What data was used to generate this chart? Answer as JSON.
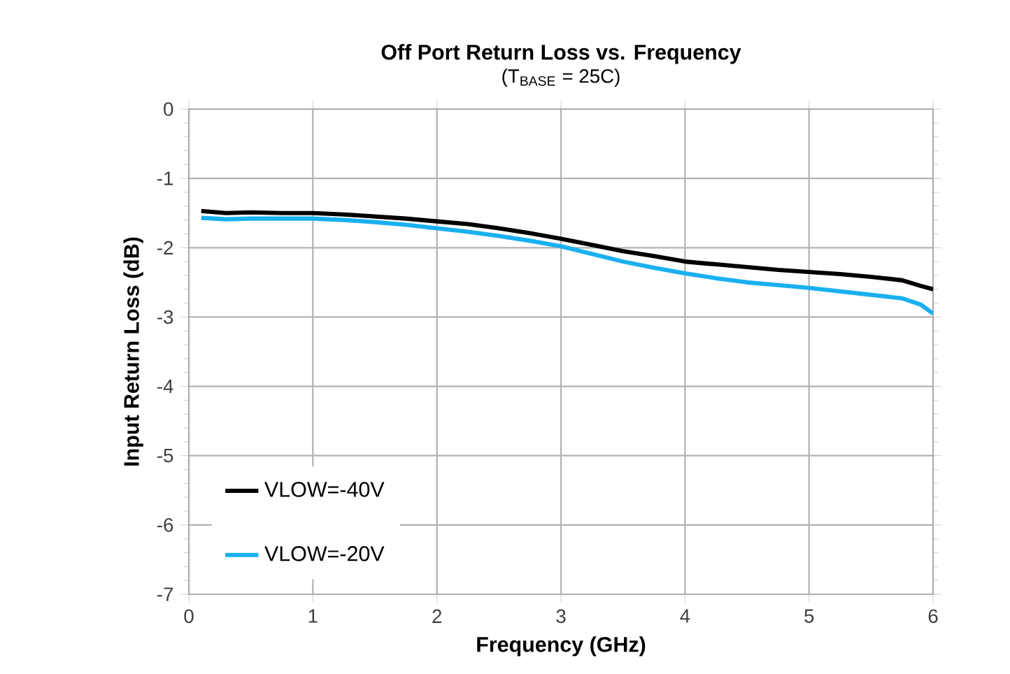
{
  "chart_data": {
    "type": "line",
    "title": "Off Port Return Loss vs. Frequency",
    "subtitle": "(T$_{BASE}$ = 25C)",
    "xlabel": "Frequency (GHz)",
    "ylabel": "Input Return Loss (dB)",
    "xlim": [
      0,
      6
    ],
    "ylim": [
      -7,
      0
    ],
    "xticks": [
      0,
      1,
      2,
      3,
      4,
      5,
      6
    ],
    "yticks": [
      -7,
      -6,
      -5,
      -4,
      -3,
      -2,
      -1,
      0
    ],
    "grid": true,
    "legend": "bottom left",
    "marker": "none",
    "line_style": "solid",
    "series": [
      {
        "name": "VLOW=-40V",
        "color": "#000000",
        "x": [
          0.1,
          0.3,
          0.5,
          0.75,
          1,
          1.25,
          1.5,
          1.75,
          2,
          2.25,
          2.5,
          2.75,
          3,
          3.25,
          3.5,
          3.75,
          4,
          4.25,
          4.5,
          4.75,
          5,
          5.25,
          5.5,
          5.75,
          5.9,
          6
        ],
        "values": [
          -1.47,
          -1.5,
          -1.49,
          -1.5,
          -1.5,
          -1.52,
          -1.55,
          -1.58,
          -1.62,
          -1.66,
          -1.72,
          -1.79,
          -1.87,
          -1.96,
          -2.05,
          -2.12,
          -2.2,
          -2.24,
          -2.28,
          -2.32,
          -2.35,
          -2.38,
          -2.42,
          -2.47,
          -2.55,
          -2.6
        ]
      },
      {
        "name": "VLOW=-20V",
        "color": "#1ab0f0",
        "x": [
          0.1,
          0.3,
          0.5,
          0.75,
          1,
          1.25,
          1.5,
          1.75,
          2,
          2.25,
          2.5,
          2.75,
          3,
          3.25,
          3.5,
          3.75,
          4,
          4.25,
          4.5,
          4.75,
          5,
          5.25,
          5.5,
          5.75,
          5.9,
          6
        ],
        "values": [
          -1.57,
          -1.59,
          -1.58,
          -1.58,
          -1.58,
          -1.6,
          -1.63,
          -1.67,
          -1.72,
          -1.77,
          -1.83,
          -1.9,
          -1.98,
          -2.09,
          -2.2,
          -2.29,
          -2.37,
          -2.44,
          -2.5,
          -2.54,
          -2.58,
          -2.63,
          -2.68,
          -2.73,
          -2.82,
          -2.95
        ]
      }
    ]
  }
}
